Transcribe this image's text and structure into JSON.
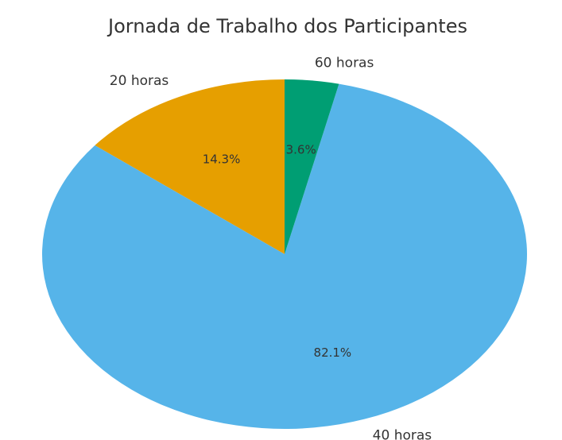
{
  "chart_data": {
    "type": "pie",
    "title": "Jornada de Trabalho dos Participantes",
    "categories": [
      "20 horas",
      "40 horas",
      "60 horas"
    ],
    "values": [
      14.3,
      82.1,
      3.6
    ],
    "value_labels": [
      "14.3%",
      "82.1%",
      "3.6%"
    ],
    "colors": [
      "#E69F00",
      "#56B4E9",
      "#009E73"
    ]
  }
}
